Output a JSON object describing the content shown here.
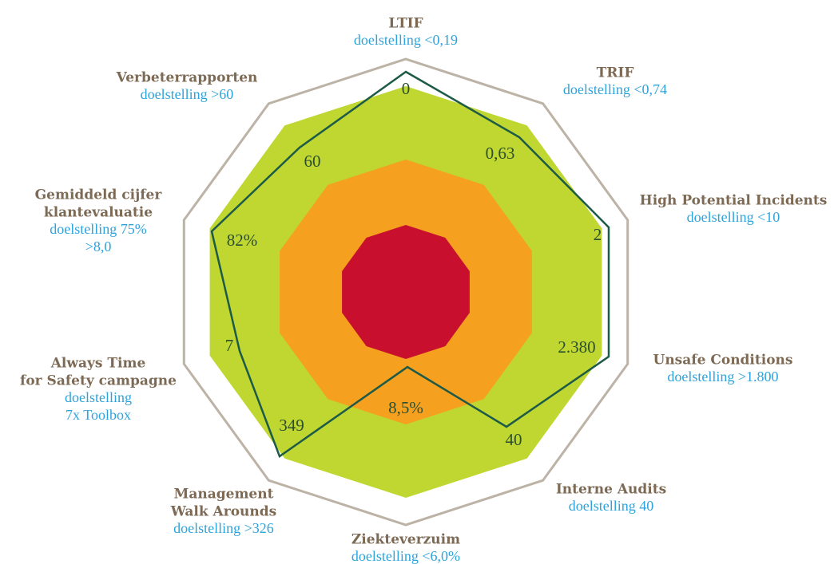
{
  "axes": [
    {
      "title": [
        "LTIF"
      ],
      "target": [
        "doelstelling <0,19"
      ],
      "value": "0"
    },
    {
      "title": [
        "TRIF"
      ],
      "target": [
        "doelstelling <0,74"
      ],
      "value": "0,63"
    },
    {
      "title": [
        "High Potential Incidents"
      ],
      "target": [
        "doelstelling <10"
      ],
      "value": "2"
    },
    {
      "title": [
        "Unsafe Conditions"
      ],
      "target": [
        "doelstelling >1.800"
      ],
      "value": "2.380"
    },
    {
      "title": [
        "Interne Audits"
      ],
      "target": [
        "doelstelling 40"
      ],
      "value": "40"
    },
    {
      "title": [
        "Ziekteverzuim"
      ],
      "target": [
        "doelstelling <6,0%"
      ],
      "value": "8,5%"
    },
    {
      "title": [
        "Management",
        "Walk Arounds"
      ],
      "target": [
        "doelstelling >326"
      ],
      "value": "349"
    },
    {
      "title": [
        "Always Time",
        "for Safety campagne"
      ],
      "target": [
        "doelstelling",
        "7x Toolbox"
      ],
      "value": "7"
    },
    {
      "title": [
        "Gemiddeld cijfer",
        "klantevaluatie"
      ],
      "target": [
        "doelstelling 75%",
        ">8,0"
      ],
      "value": "82%"
    },
    {
      "title": [
        "Verbeterrapporten"
      ],
      "target": [
        "doelstelling >60"
      ],
      "value": "60"
    }
  ]
}
